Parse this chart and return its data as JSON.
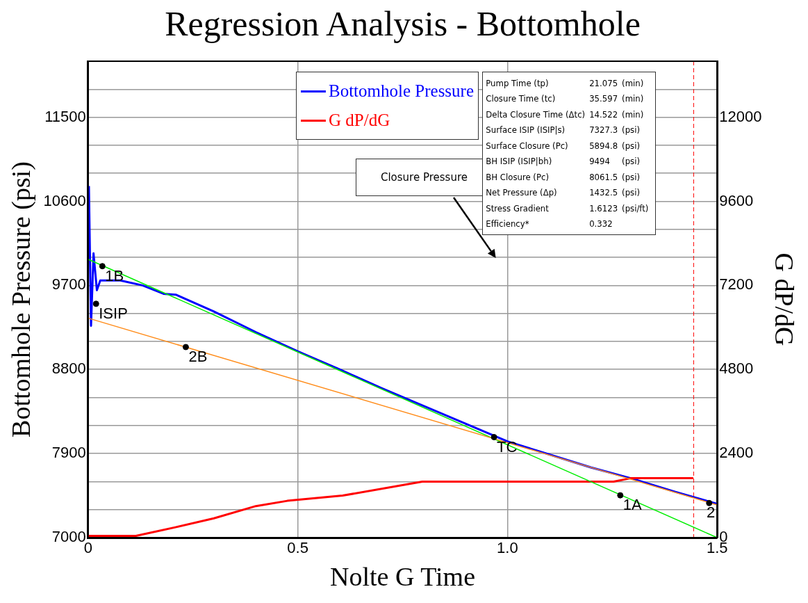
{
  "chart_data": {
    "type": "line",
    "title": "Regression Analysis - Bottomhole",
    "xlabel": "Nolte G Time",
    "ylabel": "Bottomhole Pressure (psi)",
    "y2label": "G dP/dG",
    "xlim": [
      0,
      1.5
    ],
    "xticks": [
      0,
      0.5,
      {
        "value": 1,
        "label": "1.0"
      },
      1.5
    ],
    "ylim": [
      7000,
      12100
    ],
    "yticks": [
      7000,
      {
        "value": 7300,
        "label": null
      },
      {
        "value": 7600,
        "label": null
      },
      7900,
      {
        "value": 8200,
        "label": null
      },
      {
        "value": 8500,
        "label": null
      },
      8800,
      {
        "value": 9100,
        "label": null
      },
      {
        "value": 9400,
        "label": null
      },
      9700,
      {
        "value": 10000,
        "label": null
      },
      {
        "value": 10300,
        "label": null
      },
      10600,
      {
        "value": 10900,
        "label": null
      },
      {
        "value": 11200,
        "label": null
      },
      11500,
      {
        "value": 11800,
        "label": null
      }
    ],
    "y2lim": [
      0,
      13600
    ],
    "y2ticks": [
      0,
      2400,
      4800,
      7200,
      9600,
      12000
    ],
    "grid": true,
    "legend": "top",
    "marker": "none",
    "series": [
      {
        "name": "Bottomhole Pressure",
        "color": "#0000ff",
        "x": [
          0.002,
          0.007,
          0.013,
          0.021,
          0.029,
          0.077,
          0.13,
          0.18,
          0.21,
          0.3,
          0.4,
          0.5,
          0.6,
          0.7,
          0.8,
          0.9,
          1.0,
          1.1,
          1.2,
          1.3,
          1.4,
          1.5
        ],
        "values": [
          10764,
          9268,
          10043,
          9648,
          9753,
          9753,
          9700,
          9610,
          9600,
          9420,
          9200,
          8994,
          8800,
          8600,
          8410,
          8220,
          8030,
          7890,
          7750,
          7628,
          7490,
          7362
        ]
      },
      {
        "name": "G dP/dG",
        "color": "#ff0000",
        "axis": "y2",
        "x": [
          0,
          0.114,
          0.21,
          0.3,
          0.4,
          0.475,
          0.607,
          0.797,
          1.253,
          1.296,
          1.338,
          1.41,
          1.415,
          1.443
        ],
        "values": [
          50,
          50,
          300,
          550,
          900,
          1050,
          1200,
          1600,
          1600,
          1700,
          1700,
          1700,
          1700,
          1700
        ]
      },
      {
        "color": "#00ee00",
        "x": [
          0,
          1.5
        ],
        "values": [
          9980,
          7000
        ]
      },
      {
        "color": "#ff8c1a",
        "x": [
          0,
          1.5
        ],
        "values": [
          9350,
          7350
        ]
      },
      {
        "color": "#000000",
        "type": "scatter",
        "marker": "circle",
        "x": [
          0.034,
          0.019,
          0.233,
          0.968,
          1.269,
          1.481
        ],
        "values": [
          9906,
          9503,
          9040,
          8076,
          7453,
          7370
        ]
      }
    ],
    "ref_lines": [
      {
        "axis": "x",
        "value": 1.444,
        "color": "#ff0000",
        "line_style": "dashed"
      }
    ],
    "annotations": [
      {
        "text": "1B",
        "x": 0.034,
        "y": 9906
      },
      {
        "text": "ISIP",
        "x": 0.019,
        "y": 9503
      },
      {
        "text": "2B",
        "x": 0.233,
        "y": 9040
      },
      {
        "text": "TC",
        "x": 0.968,
        "y": 8076
      },
      {
        "text": "1A",
        "x": 1.269,
        "y": 7453
      },
      {
        "text": "2",
        "x": 1.481,
        "y": 7370
      },
      "Closure Pressure",
      "Pump Time (tp)\t21.075\t(min)",
      "Closure Time (tc)\t35.597\t(min)",
      "Delta Closure Time (Δtc)\t14.522\t(min)",
      "Surface ISIP (ISIP|s)\t7327.3\t(psi)",
      "Surface Closure (Pc)\t5894.8\t(psi)",
      "BH ISIP (ISIP|bh)\t9494\t(psi)",
      "BH Closure (Pc)\t8061.5\t(psi)",
      "Net Pressure (Δp)\t1432.5\t(psi)",
      "Stress Gradient\t1.6123\t(psi/ft)",
      "Efficiency*\t0.332\t"
    ]
  }
}
